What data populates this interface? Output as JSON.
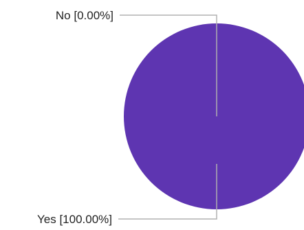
{
  "chart_data": {
    "type": "pie",
    "categories": [
      "No",
      "Yes"
    ],
    "values": [
      0.0,
      100.0
    ],
    "labels": [
      "No [0.00%]",
      "Yes [100.00%]"
    ],
    "colors": [
      "#9e9e9e",
      "#5e35b1"
    ],
    "leader_line_color": "#b0b0b0"
  }
}
